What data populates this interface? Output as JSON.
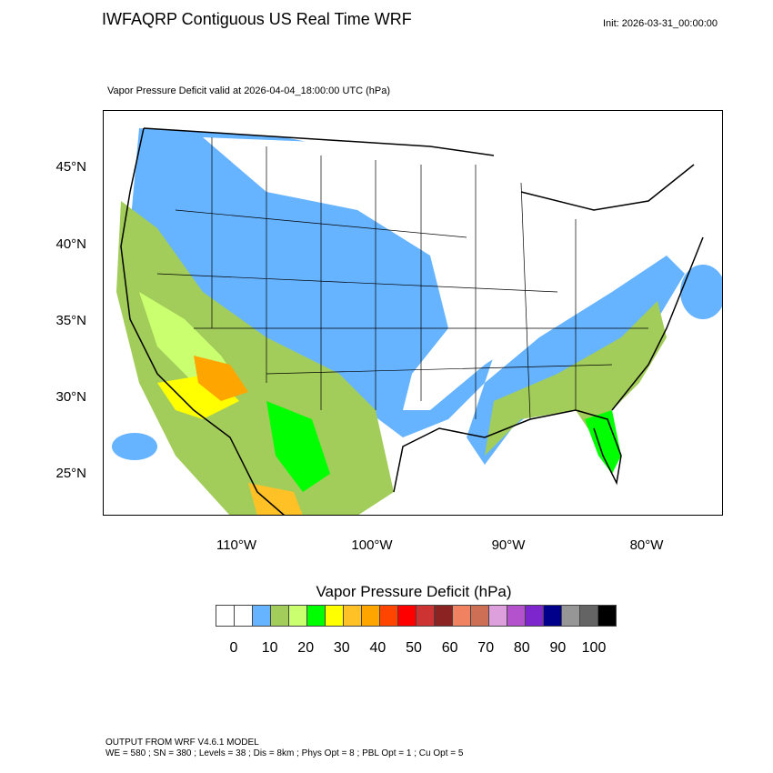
{
  "header": {
    "title": "IWFAQRP Contiguous US Real Time WRF",
    "init": "Init: 2026-03-31_00:00:00",
    "subtitle": "Vapor Pressure Deficit valid at 2026-04-04_18:00:00 UTC   (hPa)"
  },
  "map": {
    "lat_labels": [
      "45°N",
      "40°N",
      "35°N",
      "30°N",
      "25°N"
    ],
    "lon_labels": [
      "110°W",
      "100°W",
      "90°W",
      "80°W"
    ]
  },
  "colorbar": {
    "title": "Vapor Pressure Deficit  (hPa)",
    "labels": [
      "0",
      "10",
      "20",
      "30",
      "40",
      "50",
      "60",
      "70",
      "80",
      "90",
      "100"
    ],
    "colors": [
      "#ffffff",
      "#ffffff",
      "#66b3ff",
      "#a2cd5a",
      "#caff70",
      "#00ff00",
      "#ffff00",
      "#ffc125",
      "#ffa500",
      "#ff4500",
      "#ff0000",
      "#cd3333",
      "#8b2323",
      "#f08262",
      "#cd6f55",
      "#dda0dd",
      "#b452cd",
      "#7d26cd",
      "#00008b",
      "#969696",
      "#646464",
      "#000000"
    ]
  },
  "footer": {
    "line1": "OUTPUT FROM WRF V4.6.1 MODEL",
    "line2": "WE = 580 ; SN = 380 ; Levels = 38 ; Dis = 8km ; Phys Opt = 8 ; PBL Opt = 1 ; Cu Opt = 5"
  }
}
